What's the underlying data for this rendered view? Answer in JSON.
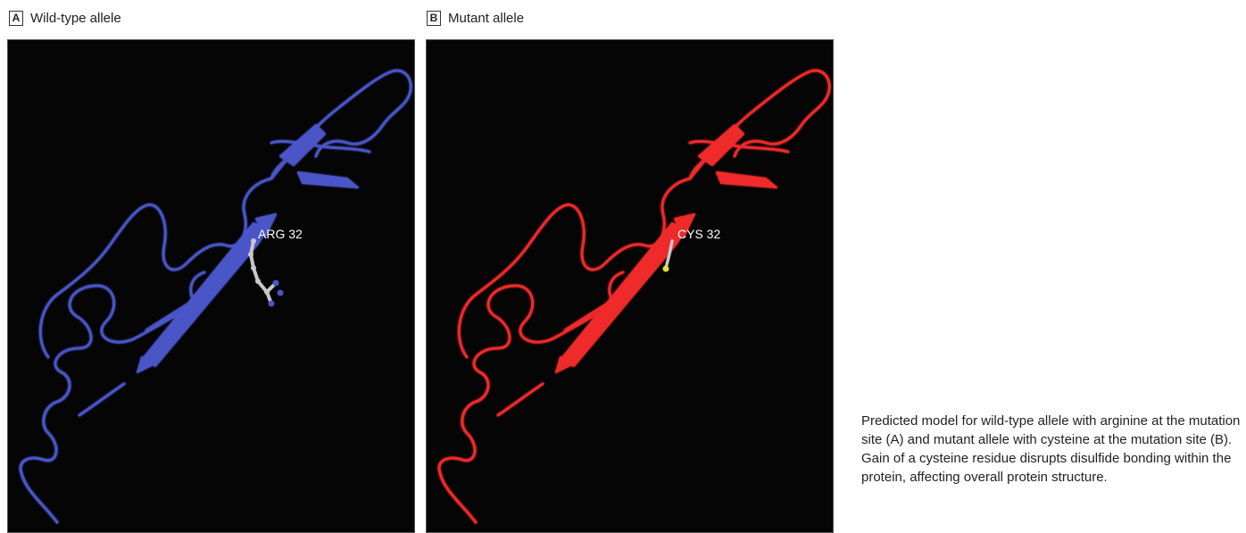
{
  "panels": [
    {
      "letter": "A",
      "title": "Wild-type allele",
      "residue_label": "ARG 32",
      "ribbon_color": "#4a55c8",
      "sidechain_color": "#c8c8c8"
    },
    {
      "letter": "B",
      "title": "Mutant allele",
      "residue_label": "CYS 32",
      "ribbon_color": "#ee2a2a",
      "sidechain_color": "#e8e030"
    }
  ],
  "caption": "Predicted model for wild-type allele with arginine at the mutation site (A) and mutant allele with cysteine at the mutation site (B). Gain of a cysteine residue disrupts disulfide bonding within the protein, affecting overall protein structure."
}
